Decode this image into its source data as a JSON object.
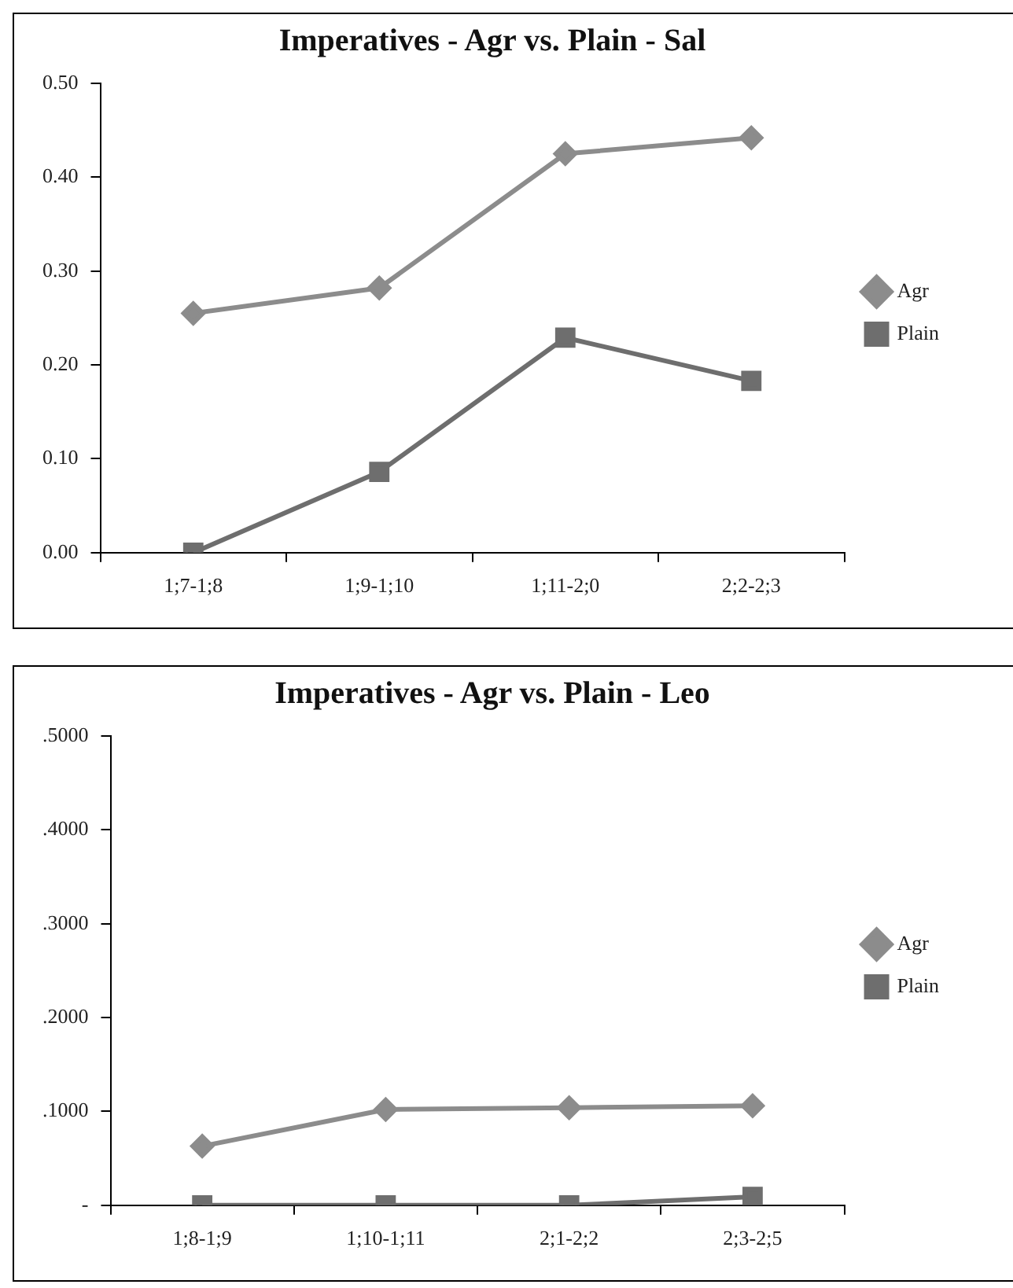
{
  "chart_data": [
    {
      "type": "line",
      "title": "Imperatives - Agr vs. Plain - Sal",
      "categories": [
        "1;7-1;8",
        "1;9-1;10",
        "1;11-2;0",
        "2;2-2;3"
      ],
      "series": [
        {
          "name": "Agr",
          "color": "#8c8c8c",
          "marker": "diamond",
          "values": [
            0.255,
            0.282,
            0.425,
            0.442
          ]
        },
        {
          "name": "Plain",
          "color": "#6e6e6e",
          "marker": "square",
          "values": [
            0,
            0.086,
            0.229,
            0.183
          ]
        }
      ],
      "ylim": [
        0,
        0.5
      ],
      "yticks": [
        {
          "value": 0,
          "label": "0.00"
        },
        {
          "value": 0.1,
          "label": "0.10"
        },
        {
          "value": 0.2,
          "label": "0.20"
        },
        {
          "value": 0.3,
          "label": "0.30"
        },
        {
          "value": 0.4,
          "label": "0.40"
        },
        {
          "value": 0.5,
          "label": "0.50"
        }
      ],
      "grid": false,
      "legend": "right"
    },
    {
      "type": "line",
      "title": "Imperatives - Agr vs. Plain - Leo",
      "categories": [
        "1;8-1;9",
        "1;10-1;11",
        "2;1-2;2",
        "2;3-2;5"
      ],
      "series": [
        {
          "name": "Agr",
          "color": "#8c8c8c",
          "marker": "diamond",
          "values": [
            0.063,
            0.102,
            0.104,
            0.106
          ]
        },
        {
          "name": "Plain",
          "color": "#6e6e6e",
          "marker": "square",
          "values": [
            0,
            0,
            0,
            0.009
          ]
        }
      ],
      "ylim": [
        0,
        0.5
      ],
      "yticks": [
        {
          "value": 0,
          "label": "-"
        },
        {
          "value": 0.1,
          "label": ".1000"
        },
        {
          "value": 0.2,
          "label": ".2000"
        },
        {
          "value": 0.3,
          "label": ".3000"
        },
        {
          "value": 0.4,
          "label": ".4000"
        },
        {
          "value": 0.5,
          "label": ".5000"
        }
      ],
      "grid": false,
      "legend": "right"
    }
  ]
}
